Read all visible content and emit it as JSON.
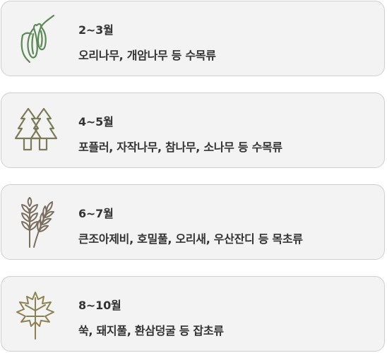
{
  "items": [
    {
      "period": "2~3월",
      "plants": "오리나무, 개암나무 등 수목류",
      "icon": "catkin-icon",
      "color": "#5b8a55"
    },
    {
      "period": "4~5월",
      "plants": "포플러, 자작나무, 참나무, 소나무 등 수목류",
      "icon": "pine-trees-icon",
      "color": "#7b7b58"
    },
    {
      "period": "6~7월",
      "plants": "큰조아제비, 호밀풀, 오리새, 우산잔디 등 목초류",
      "icon": "wheat-icon",
      "color": "#7a6e5e"
    },
    {
      "period": "8~10월",
      "plants": "쑥, 돼지풀, 환삼덩굴 등 잡초류",
      "icon": "leaf-icon",
      "color": "#8c8150"
    }
  ]
}
